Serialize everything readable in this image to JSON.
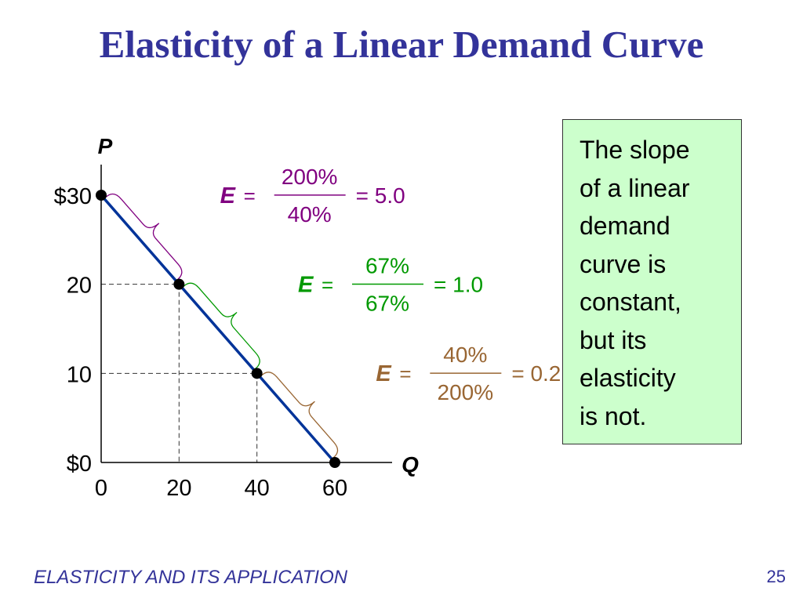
{
  "slide": {
    "title": "Elasticity of a Linear Demand Curve",
    "footer": "ELASTICITY AND ITS APPLICATION",
    "page_number": "25"
  },
  "note": {
    "lines": [
      "The slope",
      "of a linear",
      "demand",
      "curve is",
      "constant,",
      "but its",
      "elasticity",
      "is not."
    ]
  },
  "chart_data": {
    "type": "line",
    "xlabel": "Q",
    "ylabel": "P",
    "xlim": [
      0,
      60
    ],
    "ylim": [
      0,
      30
    ],
    "x_ticks": [
      {
        "value": 0,
        "label": "0"
      },
      {
        "value": 20,
        "label": "20"
      },
      {
        "value": 40,
        "label": "40"
      },
      {
        "value": 60,
        "label": "60"
      }
    ],
    "y_ticks": [
      {
        "value": 0,
        "label": "$0"
      },
      {
        "value": 10,
        "label": "10"
      },
      {
        "value": 20,
        "label": "20"
      },
      {
        "value": 30,
        "label": "$30"
      }
    ],
    "series": [
      {
        "x": [
          0,
          60
        ],
        "y": [
          30,
          0
        ]
      }
    ],
    "points": [
      {
        "x": 0,
        "y": 30
      },
      {
        "x": 20,
        "y": 20
      },
      {
        "x": 40,
        "y": 10
      },
      {
        "x": 60,
        "y": 0
      }
    ],
    "annotations": [
      {
        "from": [
          0,
          30
        ],
        "to": [
          20,
          20
        ],
        "symbol": "E",
        "equals": "=",
        "numerator": "200%",
        "denominator": "40%",
        "result": "= 5.0",
        "color": "#800080"
      },
      {
        "from": [
          20,
          20
        ],
        "to": [
          40,
          10
        ],
        "symbol": "E",
        "equals": "=",
        "numerator": "67%",
        "denominator": "67%",
        "result": "= 1.0",
        "color": "#009900"
      },
      {
        "from": [
          40,
          10
        ],
        "to": [
          60,
          0
        ],
        "symbol": "E",
        "equals": "=",
        "numerator": "40%",
        "denominator": "200%",
        "result": "= 0.2",
        "color": "#996633"
      }
    ],
    "colors": {
      "line": "#003399",
      "guides": "#333333",
      "points": "#000000"
    }
  }
}
